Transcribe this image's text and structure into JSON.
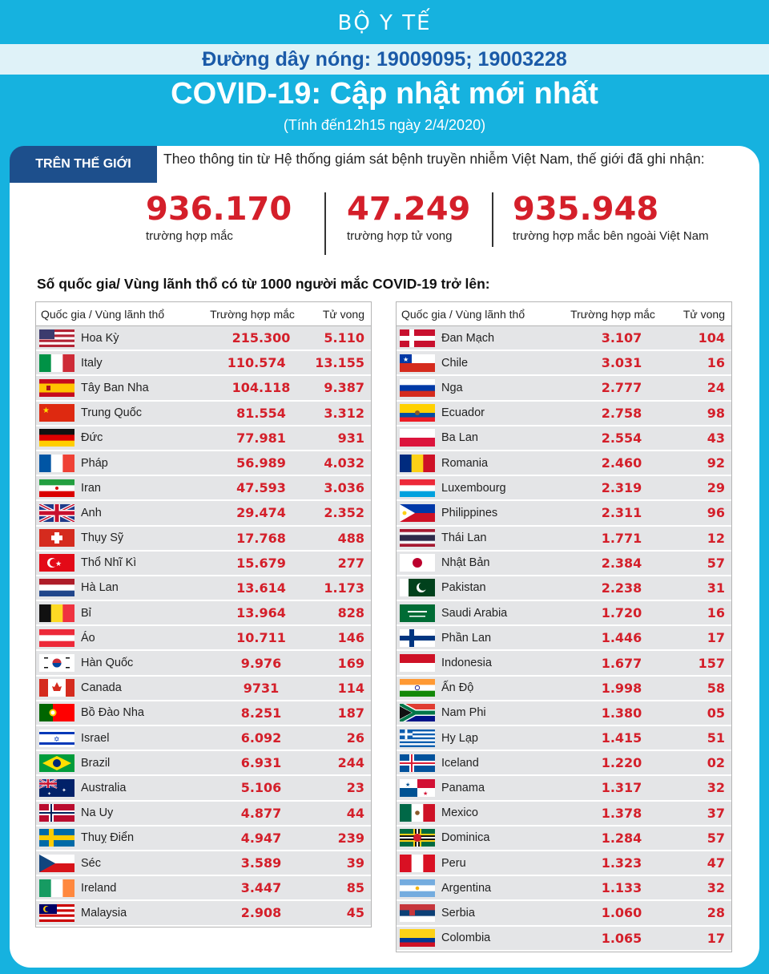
{
  "header": {
    "org": "BỘ Y TẾ",
    "hotline": "Đường dây nóng: 19009095; 19003228",
    "title": "COVID-19: Cập nhật mới nhất",
    "subtitle": "(Tính đến12h15 ngày 2/4/2020)"
  },
  "world": {
    "tag": "TRÊN THẾ GIỚI",
    "intro": "Theo thông tin từ Hệ thống giám sát bệnh truyền nhiễm Việt Nam, thế giới đã ghi nhận:",
    "stats": [
      {
        "value": "936.170",
        "label": "trường hợp mắc"
      },
      {
        "value": "47.249",
        "label": "trường hợp tử vong"
      },
      {
        "value": "935.948",
        "label": "trường hợp  mắc bên ngoài Việt Nam"
      }
    ]
  },
  "section_title": "Số quốc gia/ Vùng lãnh thổ có từ 1000 người  mắc COVID-19 trở lên:",
  "table_headers": {
    "country": "Quốc gia / Vùng lãnh thổ",
    "cases": "Trường hợp mắc",
    "deaths": "Tử vong"
  },
  "left_rows": [
    {
      "flag": "us",
      "country": "Hoa Kỳ",
      "cases": "215.300",
      "deaths": "5.110"
    },
    {
      "flag": "it",
      "country": "Italy",
      "cases": "110.574",
      "deaths": "13.155"
    },
    {
      "flag": "es",
      "country": "Tây Ban Nha",
      "cases": "104.118",
      "deaths": "9.387"
    },
    {
      "flag": "cn",
      "country": "Trung Quốc",
      "cases": "81.554",
      "deaths": "3.312"
    },
    {
      "flag": "de",
      "country": "Đức",
      "cases": "77.981",
      "deaths": "931"
    },
    {
      "flag": "fr",
      "country": "Pháp",
      "cases": "56.989",
      "deaths": "4.032"
    },
    {
      "flag": "ir",
      "country": "Iran",
      "cases": "47.593",
      "deaths": "3.036"
    },
    {
      "flag": "gb",
      "country": "Anh",
      "cases": "29.474",
      "deaths": "2.352"
    },
    {
      "flag": "ch",
      "country": "Thụy Sỹ",
      "cases": "17.768",
      "deaths": "488"
    },
    {
      "flag": "tr",
      "country": "Thổ Nhĩ Kì",
      "cases": "15.679",
      "deaths": "277"
    },
    {
      "flag": "nl",
      "country": "Hà Lan",
      "cases": "13.614",
      "deaths": "1.173"
    },
    {
      "flag": "be",
      "country": "Bỉ",
      "cases": "13.964",
      "deaths": "828"
    },
    {
      "flag": "at",
      "country": "Áo",
      "cases": "10.711",
      "deaths": "146"
    },
    {
      "flag": "kr",
      "country": "Hàn Quốc",
      "cases": "9.976",
      "deaths": "169"
    },
    {
      "flag": "ca",
      "country": "Canada",
      "cases": "9731",
      "deaths": "114"
    },
    {
      "flag": "pt",
      "country": "Bồ Đào Nha",
      "cases": "8.251",
      "deaths": "187"
    },
    {
      "flag": "il",
      "country": "Israel",
      "cases": "6.092",
      "deaths": "26"
    },
    {
      "flag": "br",
      "country": "Brazil",
      "cases": "6.931",
      "deaths": "244"
    },
    {
      "flag": "au",
      "country": "Australia",
      "cases": "5.106",
      "deaths": "23"
    },
    {
      "flag": "no",
      "country": "Na Uy",
      "cases": "4.877",
      "deaths": "44"
    },
    {
      "flag": "se",
      "country": "Thuỵ Điển",
      "cases": "4.947",
      "deaths": "239"
    },
    {
      "flag": "cz",
      "country": "Séc",
      "cases": "3.589",
      "deaths": "39"
    },
    {
      "flag": "ie",
      "country": "Ireland",
      "cases": "3.447",
      "deaths": "85"
    },
    {
      "flag": "my",
      "country": "Malaysia",
      "cases": "2.908",
      "deaths": "45"
    }
  ],
  "right_rows": [
    {
      "flag": "dk",
      "country": "Đan Mạch",
      "cases": "3.107",
      "deaths": "104"
    },
    {
      "flag": "cl",
      "country": "Chile",
      "cases": "3.031",
      "deaths": "16"
    },
    {
      "flag": "ru",
      "country": "Nga",
      "cases": "2.777",
      "deaths": "24"
    },
    {
      "flag": "ec",
      "country": "Ecuador",
      "cases": "2.758",
      "deaths": "98"
    },
    {
      "flag": "pl",
      "country": "Ba Lan",
      "cases": "2.554",
      "deaths": "43"
    },
    {
      "flag": "ro",
      "country": "Romania",
      "cases": "2.460",
      "deaths": "92"
    },
    {
      "flag": "lu",
      "country": "Luxembourg",
      "cases": "2.319",
      "deaths": "29"
    },
    {
      "flag": "ph",
      "country": "Philippines",
      "cases": "2.311",
      "deaths": "96"
    },
    {
      "flag": "th",
      "country": "Thái Lan",
      "cases": "1.771",
      "deaths": "12"
    },
    {
      "flag": "jp",
      "country": "Nhật Bản",
      "cases": "2.384",
      "deaths": "57"
    },
    {
      "flag": "pk",
      "country": "Pakistan",
      "cases": "2.238",
      "deaths": "31"
    },
    {
      "flag": "sa",
      "country": "Saudi Arabia",
      "cases": "1.720",
      "deaths": "16"
    },
    {
      "flag": "fi",
      "country": "Phần Lan",
      "cases": "1.446",
      "deaths": "17"
    },
    {
      "flag": "id",
      "country": "Indonesia",
      "cases": "1.677",
      "deaths": "157"
    },
    {
      "flag": "in",
      "country": "Ấn Độ",
      "cases": "1.998",
      "deaths": "58"
    },
    {
      "flag": "za",
      "country": "Nam Phi",
      "cases": "1.380",
      "deaths": "05"
    },
    {
      "flag": "gr",
      "country": "Hy Lạp",
      "cases": "1.415",
      "deaths": "51"
    },
    {
      "flag": "is",
      "country": "Iceland",
      "cases": "1.220",
      "deaths": "02"
    },
    {
      "flag": "pa",
      "country": "Panama",
      "cases": "1.317",
      "deaths": "32"
    },
    {
      "flag": "mx",
      "country": "Mexico",
      "cases": "1.378",
      "deaths": "37"
    },
    {
      "flag": "dm",
      "country": "Dominica",
      "cases": "1.284",
      "deaths": "57"
    },
    {
      "flag": "pe",
      "country": "Peru",
      "cases": "1.323",
      "deaths": "47"
    },
    {
      "flag": "ar",
      "country": "Argentina",
      "cases": "1.133",
      "deaths": "32"
    },
    {
      "flag": "rs",
      "country": "Serbia",
      "cases": "1.060",
      "deaths": "28"
    },
    {
      "flag": "co",
      "country": "Colombia",
      "cases": "1.065",
      "deaths": "17"
    }
  ]
}
